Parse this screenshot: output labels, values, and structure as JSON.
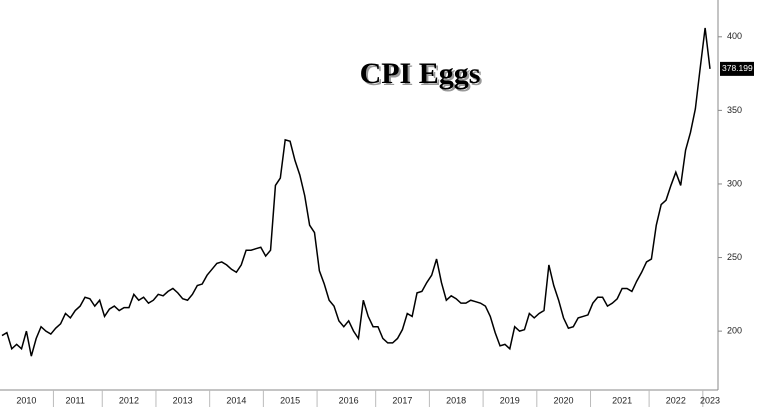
{
  "chart_data": {
    "type": "line",
    "title": "CPI Eggs",
    "categories": [
      null,
      null,
      null,
      null,
      null,
      "2010",
      null,
      null,
      null,
      null,
      null,
      null,
      null,
      null,
      null,
      "2011",
      null,
      null,
      null,
      null,
      null,
      null,
      null,
      null,
      null,
      null,
      "2012",
      null,
      null,
      null,
      null,
      null,
      null,
      null,
      null,
      null,
      null,
      "2013",
      null,
      null,
      null,
      null,
      null,
      null,
      null,
      null,
      null,
      null,
      "2014",
      null,
      null,
      null,
      null,
      null,
      null,
      null,
      null,
      null,
      null,
      "2015",
      null,
      null,
      null,
      null,
      null,
      null,
      null,
      null,
      null,
      null,
      null,
      "2016",
      null,
      null,
      null,
      null,
      null,
      null,
      null,
      null,
      null,
      null,
      "2017",
      null,
      null,
      null,
      null,
      null,
      null,
      null,
      null,
      null,
      null,
      "2018",
      null,
      null,
      null,
      null,
      null,
      null,
      null,
      null,
      null,
      null,
      "2019",
      null,
      null,
      null,
      null,
      null,
      null,
      null,
      null,
      null,
      null,
      "2020",
      null,
      null,
      null,
      null,
      null,
      null,
      null,
      null,
      null,
      null,
      null,
      "2021",
      null,
      null,
      null,
      null,
      null,
      null,
      null,
      null,
      null,
      null,
      "2022",
      null,
      null,
      null,
      null,
      null,
      null,
      "2023"
    ],
    "series": [
      {
        "name": "CPI Eggs",
        "color": "#000000",
        "values": [
          197,
          199,
          188,
          191,
          188,
          200,
          183,
          195,
          203,
          200,
          198,
          202,
          205,
          212,
          209,
          214,
          217,
          223,
          222,
          217,
          221,
          210,
          215,
          217,
          214,
          216,
          216,
          225,
          221,
          223,
          219,
          221,
          225,
          224,
          227,
          229,
          226,
          222,
          221,
          225,
          231,
          232,
          238,
          242,
          246,
          247,
          245,
          242,
          240,
          245,
          255,
          255,
          256,
          257,
          251,
          255,
          299,
          304,
          330,
          329,
          316,
          306,
          292,
          272,
          267,
          241,
          232,
          221,
          217,
          207,
          203,
          207,
          200,
          195,
          221,
          210,
          203,
          203,
          195,
          192,
          192,
          195,
          201,
          212,
          210,
          226,
          227,
          233,
          238,
          249,
          233,
          221,
          224,
          222,
          219,
          219,
          221,
          220,
          219,
          217,
          210,
          199,
          190,
          191,
          188,
          203,
          200,
          201,
          212,
          209,
          212,
          214,
          245,
          231,
          221,
          209,
          202,
          203,
          209,
          210,
          211,
          219,
          223,
          223,
          217,
          219,
          222,
          229,
          229,
          227,
          234,
          240,
          247,
          249,
          272,
          286,
          289,
          299,
          308,
          299,
          323,
          335,
          351,
          379,
          406,
          378.199
        ]
      }
    ],
    "ylim": [
      160,
      425
    ],
    "yticks": [
      200,
      250,
      300,
      350,
      400
    ]
  }
}
